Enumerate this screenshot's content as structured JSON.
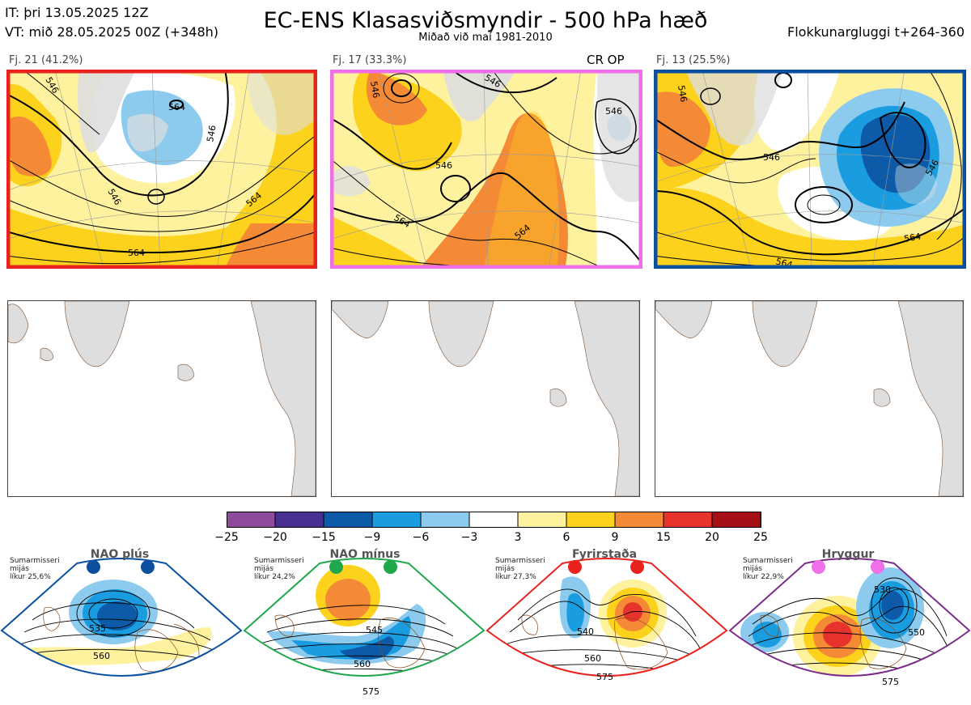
{
  "header": {
    "it": "IT: þri 13.05.2025 12Z",
    "vt": "VT: mið 28.05.2025 00Z  (+348h)",
    "title": "EC-ENS Klasasviðsmyndir - 500 hPa hæð",
    "subtitle": "Miðað við maí 1981-2010",
    "window": "Flokkunargluggi t+264-360"
  },
  "clusters": [
    {
      "label": "Fj. 21 (41.2%)",
      "border": "#e8231e",
      "contours": [
        "546",
        "546",
        "564",
        "564",
        "564",
        "546"
      ]
    },
    {
      "label": "Fj. 17 (33.3%)",
      "border": "#f06ee8",
      "badge": "CR OP",
      "contours": [
        "546",
        "546",
        "546",
        "546",
        "564",
        "564"
      ]
    },
    {
      "label": "Fj. 13 (25.5%)",
      "border": "#0a4fa0",
      "contours": [
        "546",
        "546",
        "564",
        "564",
        "546"
      ]
    }
  ],
  "colorbar": {
    "ticks": [
      "−25",
      "−20",
      "−15",
      "−9",
      "−6",
      "−3",
      "3",
      "6",
      "9",
      "15",
      "20",
      "25"
    ],
    "colors": [
      "#8e4b9c",
      "#4a2f92",
      "#0d5aa8",
      "#1a9de0",
      "#8ccbee",
      "#ffffff",
      "#fff29e",
      "#fcd21c",
      "#f48a35",
      "#e8322c",
      "#a50f15"
    ]
  },
  "regimes": [
    {
      "title": "NAO plús",
      "season": "Sumarmisseri",
      "mean": "mijás",
      "prob": "líkur 25,6%",
      "dot": "#0a4fa0",
      "frame": "#0a4fa0",
      "contours": [
        "535",
        "560"
      ]
    },
    {
      "title": "NAO mínus",
      "season": "Sumarmisseri",
      "mean": "mijás",
      "prob": "líkur 24,2%",
      "dot": "#1ea84b",
      "frame": "#1ea84b",
      "contours": [
        "545",
        "560",
        "575"
      ]
    },
    {
      "title": "Fyrirstaða",
      "season": "Sumarmisseri",
      "mean": "mijás",
      "prob": "líkur 27,3%",
      "dot": "#e8231e",
      "frame": "#e8231e",
      "contours": [
        "540",
        "560",
        "575"
      ]
    },
    {
      "title": "Hryggur",
      "season": "Sumarmisseri",
      "mean": "mijás",
      "prob": "líkur 22,9%",
      "dot": "#f06ee8",
      "frame": "#7c2b8c",
      "contours": [
        "530",
        "550",
        "575"
      ]
    }
  ]
}
